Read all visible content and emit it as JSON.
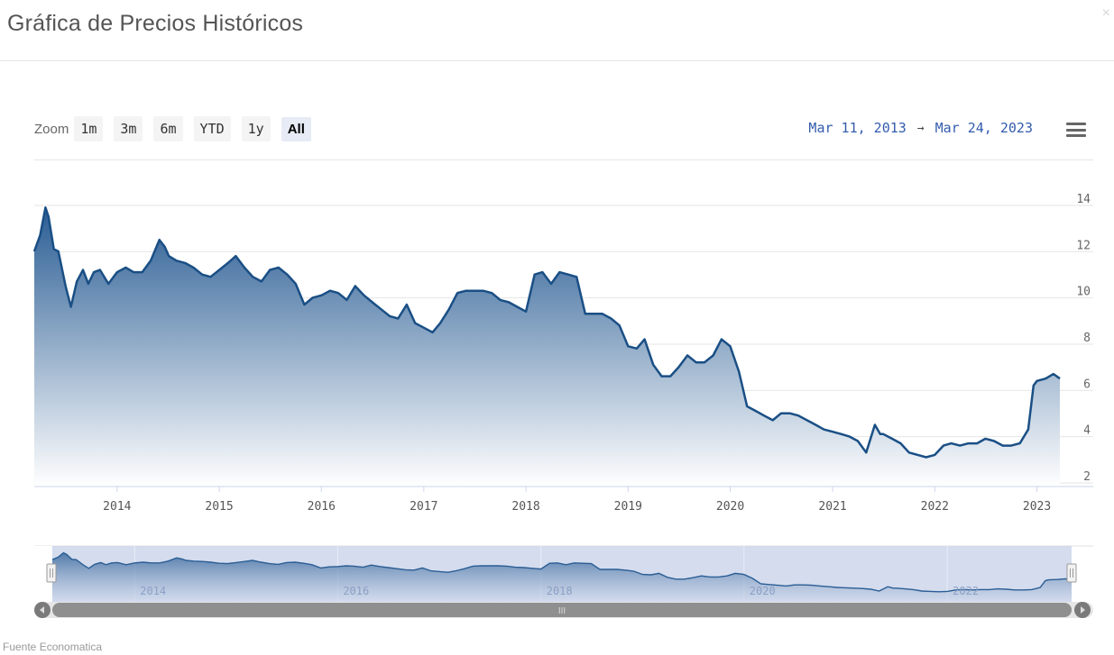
{
  "header": {
    "title": "Gráfica de Precios Históricos",
    "close_label": "×"
  },
  "zoom": {
    "label": "Zoom",
    "buttons": [
      "1m",
      "3m",
      "6m",
      "YTD",
      "1y",
      "All"
    ],
    "active": "All"
  },
  "range": {
    "from": "Mar 11, 2013",
    "arrow": "→",
    "to": "Mar 24, 2023"
  },
  "menu_icon": "hamburger-menu-icon",
  "source": "Fuente Economatica",
  "colors": {
    "line": "#1a4f85",
    "fill_top": "#2a5d94",
    "fill_bottom": "#ffffff",
    "navigator_fill": "#cfd8ec",
    "range_text": "#335cad"
  },
  "chart_data": {
    "type": "area",
    "x_axis": {
      "type": "date",
      "range": [
        "2013-03-11",
        "2023-03-24"
      ],
      "tick_labels": [
        "2014",
        "2015",
        "2016",
        "2017",
        "2018",
        "2019",
        "2020",
        "2021",
        "2022",
        "2023"
      ]
    },
    "y_axis": {
      "range": [
        2,
        14
      ],
      "tick_labels": [
        "2",
        "4",
        "6",
        "8",
        "10",
        "12",
        "14"
      ],
      "position": "right",
      "grid": true
    },
    "navigator": {
      "tick_labels": [
        "2014",
        "2016",
        "2018",
        "2020",
        "2022"
      ],
      "scrollbar_grip": "III"
    },
    "series": [
      {
        "x": [
          "2013-03-11",
          "2013-04-01",
          "2013-04-20",
          "2013-05-01",
          "2013-05-20",
          "2013-06-05",
          "2013-07-01",
          "2013-07-20",
          "2013-08-10",
          "2013-09-01",
          "2013-09-20",
          "2013-10-10",
          "2013-11-01",
          "2013-12-01",
          "2014-01-01",
          "2014-02-01",
          "2014-03-01",
          "2014-04-01",
          "2014-05-01",
          "2014-06-01",
          "2014-06-20",
          "2014-07-05",
          "2014-08-01",
          "2014-09-01",
          "2014-10-01",
          "2014-11-01",
          "2014-12-01",
          "2015-01-01",
          "2015-02-01",
          "2015-03-01",
          "2015-04-01",
          "2015-05-01",
          "2015-06-01",
          "2015-07-01",
          "2015-08-01",
          "2015-09-01",
          "2015-10-01",
          "2015-11-01",
          "2015-12-01",
          "2016-01-01",
          "2016-02-01",
          "2016-03-01",
          "2016-04-01",
          "2016-05-01",
          "2016-06-01",
          "2016-07-01",
          "2016-08-01",
          "2016-09-01",
          "2016-10-01",
          "2016-11-01",
          "2016-12-01",
          "2017-01-01",
          "2017-02-01",
          "2017-03-01",
          "2017-04-01",
          "2017-05-01",
          "2017-06-01",
          "2017-07-01",
          "2017-08-01",
          "2017-09-01",
          "2017-10-01",
          "2017-11-01",
          "2017-12-01",
          "2018-01-01",
          "2018-02-01",
          "2018-03-01",
          "2018-04-01",
          "2018-05-01",
          "2018-06-01",
          "2018-07-01",
          "2018-08-01",
          "2018-09-01",
          "2018-10-01",
          "2018-11-01",
          "2018-12-01",
          "2019-01-01",
          "2019-02-01",
          "2019-03-01",
          "2019-04-01",
          "2019-05-01",
          "2019-06-01",
          "2019-07-01",
          "2019-08-01",
          "2019-09-01",
          "2019-10-01",
          "2019-11-01",
          "2019-12-01",
          "2020-01-01",
          "2020-02-01",
          "2020-03-01",
          "2020-04-01",
          "2020-05-01",
          "2020-06-01",
          "2020-07-01",
          "2020-08-01",
          "2020-09-01",
          "2020-10-01",
          "2020-11-01",
          "2020-12-01",
          "2021-01-01",
          "2021-02-01",
          "2021-03-01",
          "2021-04-01",
          "2021-05-01",
          "2021-06-01",
          "2021-06-20",
          "2021-07-01",
          "2021-08-01",
          "2021-09-01",
          "2021-10-01",
          "2021-11-01",
          "2021-12-01",
          "2022-01-01",
          "2022-02-01",
          "2022-03-01",
          "2022-04-01",
          "2022-05-01",
          "2022-06-01",
          "2022-07-01",
          "2022-08-01",
          "2022-09-01",
          "2022-10-01",
          "2022-11-01",
          "2022-12-01",
          "2022-12-20",
          "2023-01-01",
          "2023-02-01",
          "2023-03-01",
          "2023-03-24"
        ],
        "y": [
          11.7,
          12.4,
          13.6,
          13.2,
          11.8,
          11.7,
          10.2,
          9.3,
          10.4,
          10.9,
          10.3,
          10.8,
          10.9,
          10.3,
          10.8,
          11.0,
          10.8,
          10.8,
          11.3,
          12.2,
          11.9,
          11.5,
          11.3,
          11.2,
          11.0,
          10.7,
          10.6,
          10.9,
          11.2,
          11.5,
          11.0,
          10.6,
          10.4,
          10.9,
          11.0,
          10.7,
          10.3,
          9.4,
          9.7,
          9.8,
          10.0,
          9.9,
          9.6,
          10.2,
          9.8,
          9.5,
          9.2,
          8.9,
          8.8,
          9.4,
          8.6,
          8.4,
          8.2,
          8.6,
          9.2,
          9.9,
          10.0,
          10.0,
          10.0,
          9.9,
          9.6,
          9.5,
          9.3,
          9.1,
          10.7,
          10.8,
          10.3,
          10.8,
          10.7,
          10.6,
          9.0,
          9.0,
          9.0,
          8.8,
          8.5,
          7.6,
          7.5,
          7.9,
          6.8,
          6.3,
          6.3,
          6.7,
          7.2,
          6.9,
          6.9,
          7.2,
          7.9,
          7.6,
          6.5,
          5.0,
          4.8,
          4.6,
          4.4,
          4.7,
          4.7,
          4.6,
          4.4,
          4.2,
          4.0,
          3.9,
          3.8,
          3.7,
          3.5,
          3.0,
          4.2,
          3.8,
          3.8,
          3.6,
          3.4,
          3.0,
          2.9,
          2.8,
          2.9,
          3.3,
          3.4,
          3.3,
          3.4,
          3.4,
          3.6,
          3.5,
          3.3,
          3.3,
          3.4,
          4.0,
          5.9,
          6.1,
          6.2,
          6.4,
          6.2
        ]
      }
    ]
  }
}
